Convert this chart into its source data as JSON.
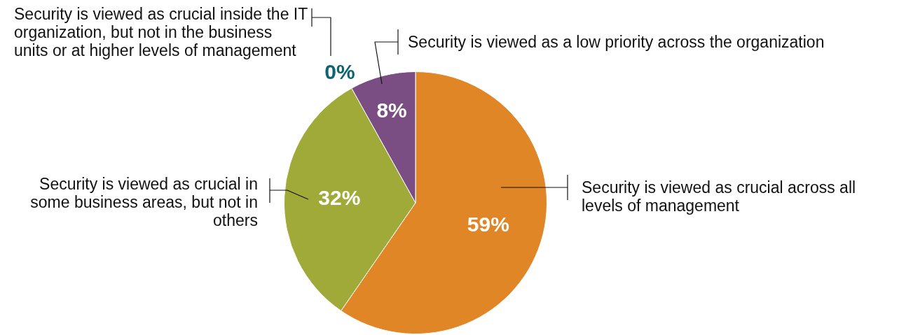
{
  "chart_data": {
    "type": "pie",
    "categories": [
      "Security is viewed as crucial across all levels of management",
      "Security is viewed as crucial in some business areas, but not in others",
      "Security is viewed as crucial inside the IT organization, but not in the business units or at higher levels of management",
      "Security is viewed as a low priority across the organization"
    ],
    "values": [
      59,
      32,
      0,
      8
    ],
    "colors": [
      "#e08626",
      "#9faa38",
      "#0e6370",
      "#7a4d83"
    ],
    "value_labels": [
      "59%",
      "32%",
      "0%",
      "8%"
    ]
  }
}
